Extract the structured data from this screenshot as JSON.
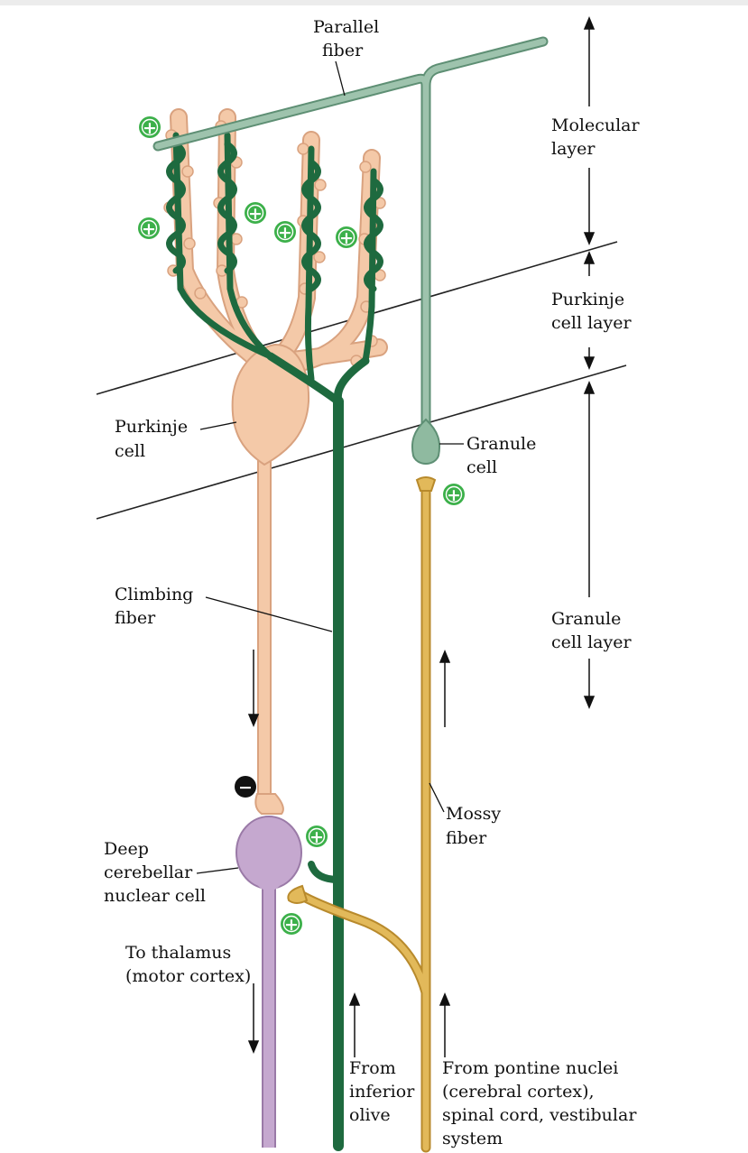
{
  "labels": {
    "parallel_fiber": [
      "Parallel",
      "fiber"
    ],
    "molecular_layer": [
      "Molecular",
      "layer"
    ],
    "purkinje_cell_layer": [
      "Purkinje",
      "cell layer"
    ],
    "granule_cell_layer": [
      "Granule",
      "cell layer"
    ],
    "purkinje_cell": [
      "Purkinje",
      "cell"
    ],
    "granule_cell": [
      "Granule",
      "cell"
    ],
    "climbing_fiber": [
      "Climbing",
      "fiber"
    ],
    "mossy_fiber": [
      "Mossy",
      "fiber"
    ],
    "deep_cerebellar_nuclear_cell": [
      "Deep",
      "cerebellar",
      "nuclear cell"
    ],
    "to_thalamus": [
      "To thalamus",
      "(motor cortex)"
    ],
    "from_inferior_olive": [
      "From",
      "inferior",
      "olive"
    ],
    "from_pontine_nuclei": [
      "From pontine nuclei",
      "(cerebral cortex),",
      "spinal cord, vestibular",
      "system"
    ]
  },
  "symbols": {
    "excitatory": "+",
    "inhibitory": "−"
  },
  "colors": {
    "purkinje": "#f4c9a8",
    "purkinje_outline": "#d9a27f",
    "climbing": "#1e6a3f",
    "parallel": "#9ec3ad",
    "parallel_outline": "#5e8f74",
    "mossy": "#e2b95a",
    "mossy_outline": "#b88a2c",
    "deep_nuclear": "#c5a8cf",
    "deep_nuclear_outline": "#9a7aa7",
    "plus_symbol": "#3cb04a",
    "minus_symbol": "#111111"
  }
}
